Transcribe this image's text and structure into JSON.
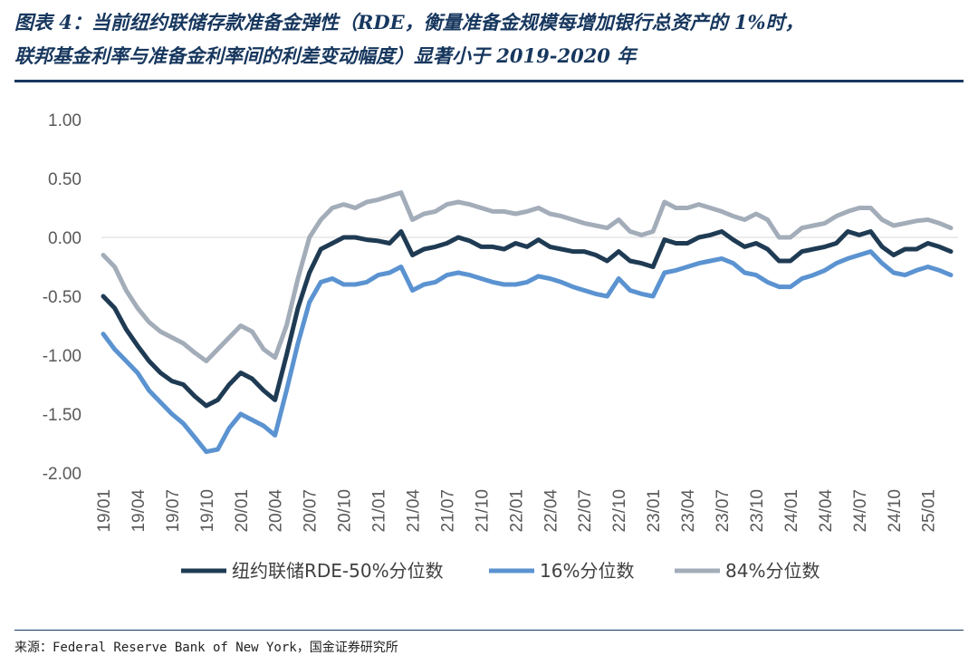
{
  "title": {
    "line1": "图表 4：当前纽约联储存款准备金弹性（RDE，衡量准备金规模每增加银行总资产的 1%时，",
    "line2": "联邦基金利率与准备金利率间的利差变动幅度）显著小于 2019-2020 年"
  },
  "source": "来源：Federal Reserve Bank of New York，国金证券研究所",
  "colors": {
    "median": "#1f3b54",
    "p16": "#5b93d1",
    "p84": "#a3adb9",
    "title": "#17375e"
  },
  "chart_data": {
    "type": "line",
    "ylim": [
      -2.0,
      1.0
    ],
    "y_ticks": [
      "1.00",
      "0.50",
      "0.00",
      "-0.50",
      "-1.00",
      "-1.50",
      "-2.00"
    ],
    "y_tick_values": [
      1.0,
      0.5,
      0.0,
      -0.5,
      -1.0,
      -1.5,
      -2.0
    ],
    "x_range": [
      0,
      74
    ],
    "x_ticks": [
      "19/01",
      "19/04",
      "19/07",
      "19/10",
      "20/01",
      "20/04",
      "20/07",
      "20/10",
      "21/01",
      "21/04",
      "21/07",
      "21/10",
      "22/01",
      "22/04",
      "22/07",
      "22/10",
      "23/01",
      "23/04",
      "23/07",
      "23/10",
      "24/01",
      "24/04",
      "24/07",
      "24/10",
      "25/01"
    ],
    "x_tick_positions": [
      0,
      3,
      6,
      9,
      12,
      15,
      18,
      21,
      24,
      27,
      30,
      33,
      36,
      39,
      42,
      45,
      48,
      51,
      54,
      57,
      60,
      63,
      66,
      69,
      72
    ],
    "x": [
      0,
      1,
      2,
      3,
      4,
      5,
      6,
      7,
      8,
      9,
      10,
      11,
      12,
      13,
      14,
      15,
      16,
      17,
      18,
      19,
      20,
      21,
      22,
      23,
      24,
      25,
      26,
      27,
      28,
      29,
      30,
      31,
      32,
      33,
      34,
      35,
      36,
      37,
      38,
      39,
      40,
      41,
      42,
      43,
      44,
      45,
      46,
      47,
      48,
      49,
      50,
      51,
      52,
      53,
      54,
      55,
      56,
      57,
      58,
      59,
      60,
      61,
      62,
      63,
      64,
      65,
      66,
      67,
      68,
      69,
      70,
      71,
      72,
      73,
      74
    ],
    "legend": [
      "纽约联储RDE-50%分位数",
      "16%分位数",
      "84%分位数"
    ],
    "series": [
      {
        "name": "纽约联储RDE-50%分位数",
        "values": [
          -0.5,
          -0.6,
          -0.78,
          -0.92,
          -1.05,
          -1.15,
          -1.22,
          -1.25,
          -1.35,
          -1.43,
          -1.38,
          -1.25,
          -1.15,
          -1.2,
          -1.3,
          -1.38,
          -1.0,
          -0.6,
          -0.3,
          -0.1,
          -0.05,
          0.0,
          0.0,
          -0.02,
          -0.03,
          -0.05,
          0.05,
          -0.15,
          -0.1,
          -0.08,
          -0.05,
          0.0,
          -0.03,
          -0.08,
          -0.08,
          -0.1,
          -0.05,
          -0.08,
          -0.02,
          -0.08,
          -0.1,
          -0.12,
          -0.12,
          -0.15,
          -0.2,
          -0.12,
          -0.2,
          -0.22,
          -0.25,
          -0.02,
          -0.05,
          -0.05,
          0.0,
          0.02,
          0.05,
          -0.02,
          -0.08,
          -0.05,
          -0.1,
          -0.2,
          -0.2,
          -0.12,
          -0.1,
          -0.08,
          -0.05,
          0.05,
          0.02,
          0.05,
          -0.08,
          -0.15,
          -0.1,
          -0.1,
          -0.05,
          -0.08,
          -0.12
        ]
      },
      {
        "name": "16%分位数",
        "values": [
          -0.82,
          -0.95,
          -1.05,
          -1.15,
          -1.3,
          -1.4,
          -1.5,
          -1.58,
          -1.7,
          -1.82,
          -1.8,
          -1.62,
          -1.5,
          -1.55,
          -1.6,
          -1.68,
          -1.3,
          -0.9,
          -0.55,
          -0.38,
          -0.35,
          -0.4,
          -0.4,
          -0.38,
          -0.32,
          -0.3,
          -0.25,
          -0.45,
          -0.4,
          -0.38,
          -0.32,
          -0.3,
          -0.32,
          -0.35,
          -0.38,
          -0.4,
          -0.4,
          -0.38,
          -0.33,
          -0.35,
          -0.38,
          -0.42,
          -0.45,
          -0.48,
          -0.5,
          -0.35,
          -0.45,
          -0.48,
          -0.5,
          -0.3,
          -0.28,
          -0.25,
          -0.22,
          -0.2,
          -0.18,
          -0.22,
          -0.3,
          -0.32,
          -0.38,
          -0.42,
          -0.42,
          -0.35,
          -0.32,
          -0.28,
          -0.22,
          -0.18,
          -0.15,
          -0.12,
          -0.22,
          -0.3,
          -0.32,
          -0.28,
          -0.25,
          -0.28,
          -0.32
        ]
      },
      {
        "name": "84%分位数",
        "values": [
          -0.15,
          -0.25,
          -0.45,
          -0.6,
          -0.72,
          -0.8,
          -0.85,
          -0.9,
          -0.98,
          -1.05,
          -0.95,
          -0.85,
          -0.75,
          -0.8,
          -0.95,
          -1.02,
          -0.75,
          -0.35,
          0.0,
          0.15,
          0.25,
          0.28,
          0.25,
          0.3,
          0.32,
          0.35,
          0.38,
          0.15,
          0.2,
          0.22,
          0.28,
          0.3,
          0.28,
          0.25,
          0.22,
          0.22,
          0.2,
          0.22,
          0.25,
          0.2,
          0.18,
          0.15,
          0.12,
          0.1,
          0.08,
          0.15,
          0.05,
          0.02,
          0.05,
          0.3,
          0.25,
          0.25,
          0.28,
          0.25,
          0.22,
          0.18,
          0.15,
          0.2,
          0.15,
          0.0,
          0.0,
          0.08,
          0.1,
          0.12,
          0.18,
          0.22,
          0.25,
          0.25,
          0.15,
          0.1,
          0.12,
          0.14,
          0.15,
          0.12,
          0.08
        ]
      }
    ]
  }
}
